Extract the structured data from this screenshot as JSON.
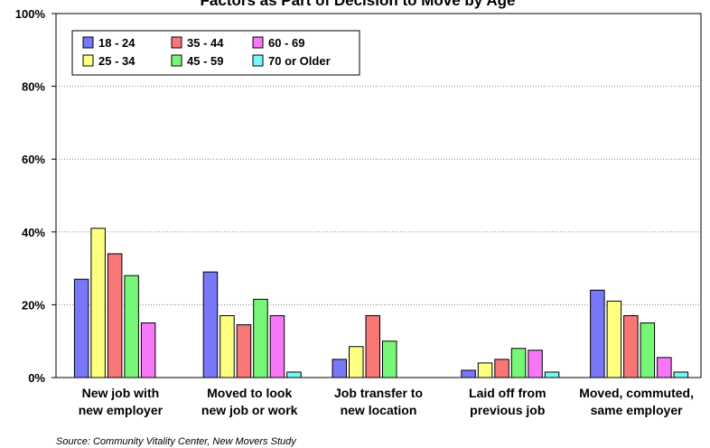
{
  "chart_data": {
    "type": "bar",
    "title": "Factors as Part of Decision to Move by Age",
    "source": "Source: Community Vitality Center, New Movers Study",
    "ylim": [
      0,
      100
    ],
    "yticks": [
      "0%",
      "20%",
      "40%",
      "60%",
      "80%",
      "100%"
    ],
    "ytick_values": [
      0,
      20,
      40,
      60,
      80,
      100
    ],
    "grid": true,
    "legend_position": "top-left",
    "categories": [
      [
        "New job with",
        "new employer"
      ],
      [
        "Moved to look",
        "new job or work"
      ],
      [
        "Job transfer to",
        "new location"
      ],
      [
        "Laid off from",
        "previous job"
      ],
      [
        "Moved, commuted,",
        "same employer"
      ]
    ],
    "series": [
      {
        "name": "18 - 24",
        "color": "#7777f7",
        "values": [
          27,
          29,
          5,
          2,
          24
        ]
      },
      {
        "name": "25 - 34",
        "color": "#ffff80",
        "values": [
          41,
          17,
          8.5,
          4,
          21
        ]
      },
      {
        "name": "35 - 44",
        "color": "#f77777",
        "values": [
          34,
          14.5,
          17,
          5,
          17
        ]
      },
      {
        "name": "45 - 59",
        "color": "#77f777",
        "values": [
          28,
          21.5,
          10,
          8,
          15
        ]
      },
      {
        "name": "60 - 69",
        "color": "#f777f7",
        "values": [
          15,
          17,
          0,
          7.5,
          5.5
        ]
      },
      {
        "name": "70 or Older",
        "color": "#77f7f7",
        "values": [
          0,
          1.5,
          0,
          1.5,
          1.5
        ]
      }
    ]
  }
}
